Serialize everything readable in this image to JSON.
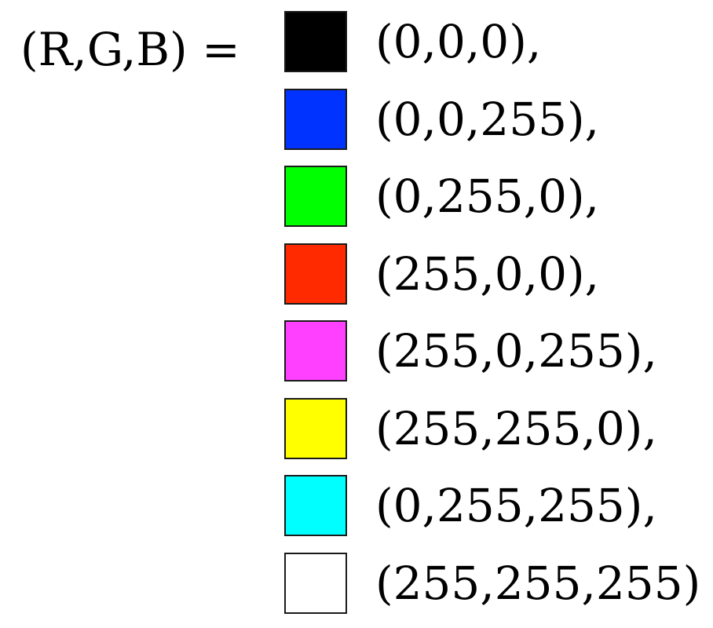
{
  "equation": {
    "lhs": "(R,G,B) ="
  },
  "swatches": [
    {
      "label": "(0,0,0),",
      "color": "#000000"
    },
    {
      "label": "(0,0,255),",
      "color": "#0033ff"
    },
    {
      "label": "(0,255,0),",
      "color": "#00ff00"
    },
    {
      "label": "(255,0,0),",
      "color": "#ff2a00"
    },
    {
      "label": "(255,0,255),",
      "color": "#ff40ff"
    },
    {
      "label": "(255,255,0),",
      "color": "#ffff00"
    },
    {
      "label": "(0,255,255),",
      "color": "#00ffff"
    },
    {
      "label": "(255,255,255)",
      "color": "#ffffff"
    }
  ]
}
